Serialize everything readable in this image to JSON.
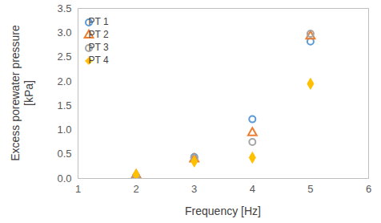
{
  "chart_data": {
    "type": "scatter",
    "x_label": "Frequency [Hz]",
    "y_label": "Excess porewater pressure\n[kPa]",
    "x": [
      2,
      3,
      4,
      5
    ],
    "series": [
      {
        "name": "PT 1",
        "color": "#5b9bd5",
        "marker": "circle-open",
        "values": [
          0.05,
          0.44,
          1.22,
          2.82
        ]
      },
      {
        "name": "PT 2",
        "color": "#ed7d31",
        "marker": "triangle-open",
        "values": [
          0.07,
          0.4,
          0.94,
          2.93
        ]
      },
      {
        "name": "PT 3",
        "color": "#a5a5a5",
        "marker": "circle-open",
        "values": [
          0.04,
          0.42,
          0.75,
          2.98
        ]
      },
      {
        "name": "PT 4",
        "color": "#ffc000",
        "marker": "diamond",
        "values": [
          0.08,
          0.35,
          0.43,
          1.95
        ]
      }
    ],
    "xlim": [
      1,
      6
    ],
    "xticks": [
      1,
      2,
      3,
      4,
      5,
      6
    ],
    "ylim": [
      0,
      3.5
    ],
    "yticks": [
      {
        "value": 0,
        "label": "0.0"
      },
      0.5,
      {
        "value": 1,
        "label": "1.0"
      },
      1.5,
      {
        "value": 2,
        "label": "2.0"
      },
      2.5,
      {
        "value": 3,
        "label": "3.0"
      },
      3.5
    ],
    "grid": false,
    "legend": "top-left"
  }
}
